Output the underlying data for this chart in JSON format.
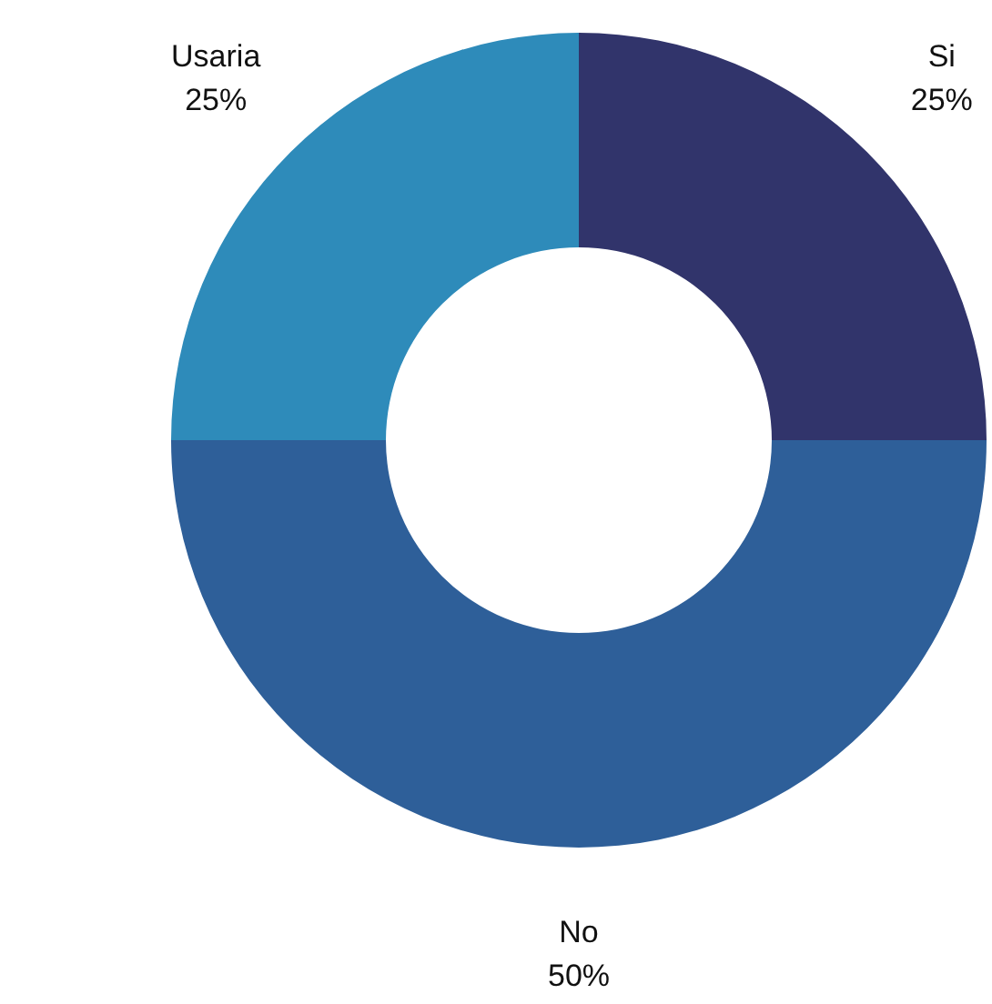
{
  "chart_data": {
    "type": "donut",
    "categories": [
      "Si",
      "No",
      "Usaria"
    ],
    "values": [
      25,
      50,
      25
    ],
    "colors": [
      "#31346b",
      "#2e5f99",
      "#2e8bba"
    ],
    "value_labels": [
      "25%",
      "50%",
      "25%"
    ]
  }
}
